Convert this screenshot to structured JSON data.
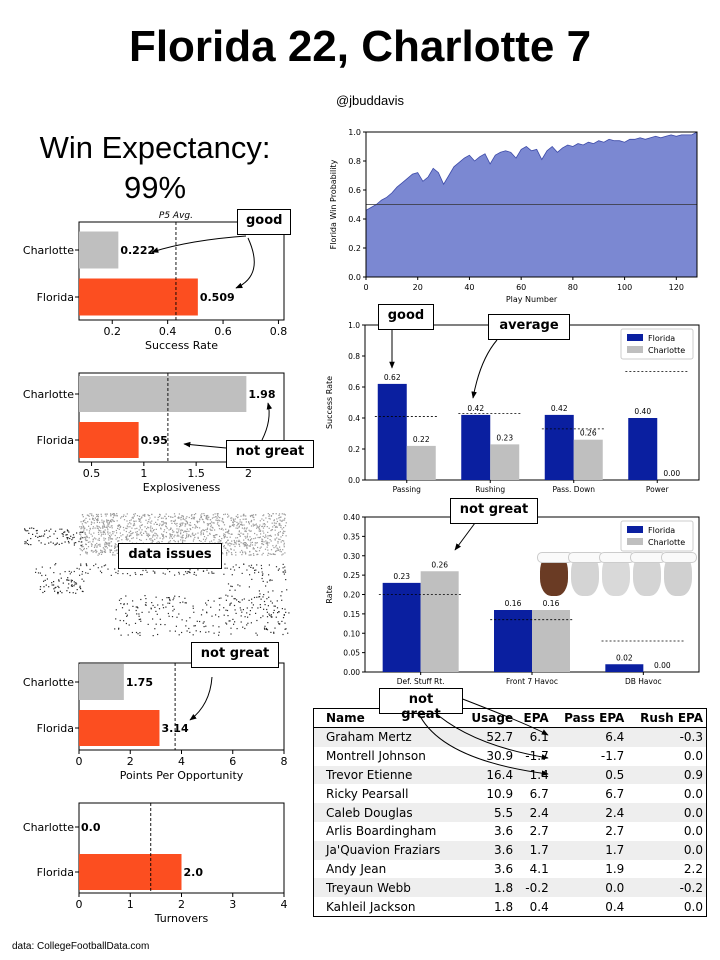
{
  "header": {
    "title": "Florida 22, Charlotte 7",
    "handle": "@jbuddavis",
    "win_expectancy_label": "Win Expectancy:",
    "win_expectancy_value": "99%",
    "source": "data: CollegeFootballData.com"
  },
  "colors": {
    "florida_bar": "#fc4e20",
    "charlotte_bar": "#bfbfbf",
    "florida_navy": "#0a1fa0",
    "wp_fill": "#7b88d2"
  },
  "callouts": {
    "success_rate": "good",
    "explosiveness": "not great",
    "havoc_missing": "data issues",
    "ppo": "not great",
    "split_passing": "good",
    "split_rushing": "average",
    "havoc": "not great",
    "table": "not great"
  },
  "chart_data": [
    {
      "id": "success_rate",
      "type": "bar",
      "orientation": "horizontal",
      "categories": [
        "Charlotte",
        "Florida"
      ],
      "values": [
        0.222,
        0.509
      ],
      "value_labels": [
        "0.222",
        "0.509"
      ],
      "xlabel": "Success Rate",
      "xlim": [
        0.08,
        0.82
      ],
      "xticks": [
        0.2,
        0.4,
        0.6,
        0.8
      ],
      "xtick_labels": [
        "0.2",
        "0.4",
        "0.6",
        "0.8"
      ],
      "reference": 0.43,
      "reference_label": "P5 Avg."
    },
    {
      "id": "explosiveness",
      "type": "bar",
      "orientation": "horizontal",
      "categories": [
        "Charlotte",
        "Florida"
      ],
      "values": [
        1.98,
        0.95
      ],
      "value_labels": [
        "1.98",
        "0.95"
      ],
      "xlabel": "Explosiveness",
      "xlim": [
        0.38,
        2.34
      ],
      "xticks": [
        0.5,
        1,
        1.5,
        2
      ],
      "xtick_labels": [
        "0.5",
        "1",
        "1.5",
        "2"
      ],
      "reference": 1.23
    },
    {
      "id": "points_per_opportunity",
      "type": "bar",
      "orientation": "horizontal",
      "categories": [
        "Charlotte",
        "Florida"
      ],
      "values": [
        1.75,
        3.14
      ],
      "value_labels": [
        "1.75",
        "3.14"
      ],
      "xlabel": "Points Per Opportunity",
      "xlim": [
        0,
        8
      ],
      "xticks": [
        0,
        2,
        4,
        6,
        8
      ],
      "xtick_labels": [
        "0",
        "2",
        "4",
        "6",
        "8"
      ],
      "reference": 3.75
    },
    {
      "id": "turnovers",
      "type": "bar",
      "orientation": "horizontal",
      "categories": [
        "Charlotte",
        "Florida"
      ],
      "values": [
        0.0,
        2.0
      ],
      "value_labels": [
        "0.0",
        "2.0"
      ],
      "xlabel": "Turnovers",
      "xlim": [
        0,
        4
      ],
      "xticks": [
        0,
        1,
        2,
        3,
        4
      ],
      "xtick_labels": [
        "0",
        "1",
        "2",
        "3",
        "4"
      ],
      "reference": 1.4
    },
    {
      "id": "win_probability",
      "type": "area",
      "xlabel": "Play Number",
      "ylabel": "Florida Win Probability",
      "xlim": [
        0,
        128
      ],
      "ylim": [
        0,
        1
      ],
      "xticks": [
        0,
        20,
        40,
        60,
        80,
        100,
        120
      ],
      "xtick_labels": [
        "0",
        "20",
        "40",
        "60",
        "80",
        "100",
        "120"
      ],
      "yticks": [
        0,
        0.2,
        0.4,
        0.6,
        0.8,
        1.0
      ],
      "ytick_labels": [
        "0.0",
        "0.2",
        "0.4",
        "0.6",
        "0.8",
        "1.0"
      ],
      "reference": 0.5,
      "x": [
        0,
        2,
        4,
        6,
        8,
        10,
        12,
        14,
        16,
        18,
        20,
        22,
        24,
        26,
        28,
        30,
        32,
        34,
        36,
        38,
        40,
        42,
        44,
        46,
        48,
        50,
        52,
        54,
        56,
        58,
        60,
        62,
        64,
        66,
        68,
        70,
        72,
        74,
        76,
        78,
        80,
        82,
        84,
        86,
        88,
        90,
        92,
        94,
        96,
        98,
        100,
        102,
        104,
        106,
        108,
        110,
        112,
        114,
        116,
        118,
        120,
        122,
        124,
        126,
        128
      ],
      "y": [
        0.46,
        0.48,
        0.5,
        0.53,
        0.55,
        0.58,
        0.62,
        0.65,
        0.68,
        0.71,
        0.72,
        0.66,
        0.69,
        0.75,
        0.72,
        0.64,
        0.7,
        0.76,
        0.79,
        0.82,
        0.84,
        0.8,
        0.83,
        0.85,
        0.78,
        0.84,
        0.86,
        0.87,
        0.86,
        0.82,
        0.88,
        0.9,
        0.87,
        0.88,
        0.81,
        0.87,
        0.9,
        0.86,
        0.89,
        0.91,
        0.9,
        0.92,
        0.91,
        0.93,
        0.92,
        0.94,
        0.93,
        0.95,
        0.94,
        0.94,
        0.93,
        0.95,
        0.95,
        0.96,
        0.95,
        0.96,
        0.97,
        0.96,
        0.97,
        0.98,
        0.97,
        0.98,
        0.98,
        0.98,
        1.0
      ]
    },
    {
      "id": "success_rate_splits",
      "type": "bar",
      "categories": [
        "Passing",
        "Rushing",
        "Pass. Down",
        "Power"
      ],
      "series": [
        {
          "name": "Florida",
          "values": [
            0.62,
            0.42,
            0.42,
            0.4
          ],
          "labels": [
            "0.62",
            "0.42",
            "0.42",
            "0.40"
          ]
        },
        {
          "name": "Charlotte",
          "values": [
            0.22,
            0.23,
            0.26,
            0.0
          ],
          "labels": [
            "0.22",
            "0.23",
            "0.26",
            "0.00"
          ]
        }
      ],
      "references": [
        0.41,
        0.43,
        0.33,
        0.7
      ],
      "ylabel": "Success Rate",
      "ylim": [
        0,
        1
      ],
      "yticks": [
        0,
        0.2,
        0.4,
        0.6,
        0.8,
        1.0
      ],
      "ytick_labels": [
        "0.0",
        "0.2",
        "0.4",
        "0.6",
        "0.8",
        "1.0"
      ],
      "legend": "top-right"
    },
    {
      "id": "havoc",
      "type": "bar",
      "categories": [
        "Def. Stuff Rt.",
        "Front 7 Havoc",
        "DB Havoc"
      ],
      "series": [
        {
          "name": "Florida",
          "values": [
            0.23,
            0.16,
            0.02
          ],
          "labels": [
            "0.23",
            "0.16",
            "0.02"
          ]
        },
        {
          "name": "Charlotte",
          "values": [
            0.26,
            0.16,
            0.0
          ],
          "labels": [
            "0.26",
            "0.16",
            "0.00"
          ]
        }
      ],
      "references": [
        0.2,
        0.135,
        0.08
      ],
      "ylabel": "Rate",
      "ylim": [
        0,
        0.4
      ],
      "yticks": [
        0,
        0.05,
        0.1,
        0.15,
        0.2,
        0.25,
        0.3,
        0.35,
        0.4
      ],
      "ytick_labels": [
        "0.00",
        "0.05",
        "0.10",
        "0.15",
        "0.20",
        "0.25",
        "0.30",
        "0.35",
        "0.40"
      ],
      "legend": "top-right"
    },
    {
      "id": "player_usage",
      "type": "table",
      "columns": [
        "Name",
        "Usage",
        "EPA",
        "Pass EPA",
        "Rush EPA"
      ],
      "rows": [
        [
          "Graham Mertz",
          "52.7",
          "6.1",
          "6.4",
          "-0.3"
        ],
        [
          "Montrell Johnson",
          "30.9",
          "-1.7",
          "-1.7",
          "0.0"
        ],
        [
          "Trevor Etienne",
          "16.4",
          "1.4",
          "0.5",
          "0.9"
        ],
        [
          "Ricky Pearsall",
          "10.9",
          "6.7",
          "6.7",
          "0.0"
        ],
        [
          "Caleb Douglas",
          "5.5",
          "2.4",
          "2.4",
          "0.0"
        ],
        [
          "Arlis Boardingham",
          "3.6",
          "2.7",
          "2.7",
          "0.0"
        ],
        [
          "Ja'Quavion Fraziars",
          "3.6",
          "1.7",
          "1.7",
          "0.0"
        ],
        [
          "Andy Jean",
          "3.6",
          "4.1",
          "1.9",
          "2.2"
        ],
        [
          "Treyaun Webb",
          "1.8",
          "-0.2",
          "0.0",
          "-0.2"
        ],
        [
          "Kahleil Jackson",
          "1.8",
          "0.4",
          "0.4",
          "0.0"
        ]
      ]
    }
  ]
}
